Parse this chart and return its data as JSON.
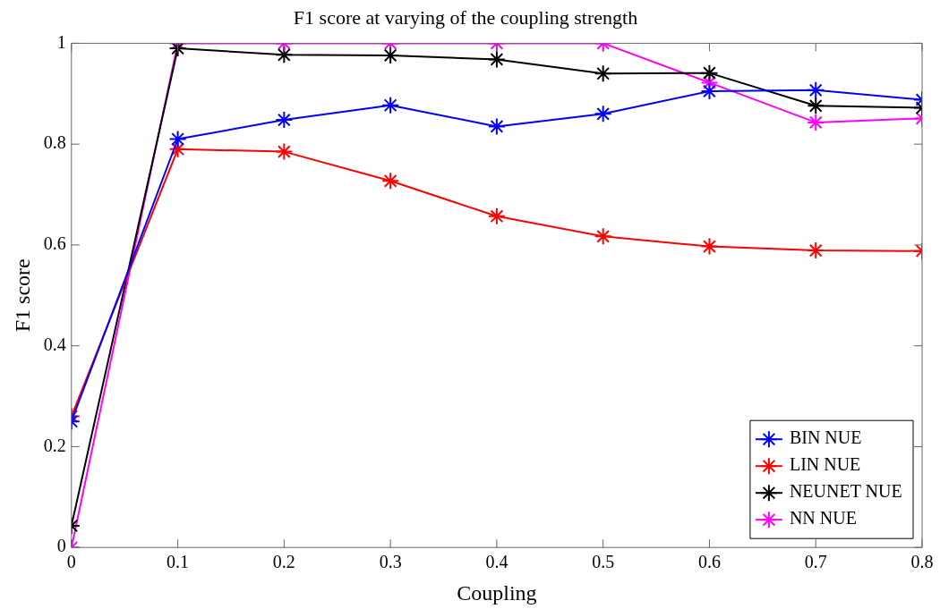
{
  "chart_data": {
    "type": "line",
    "title": "F1 score at varying of the coupling strength",
    "xlabel": "Coupling",
    "ylabel": "F1 score",
    "x": [
      0,
      0.1,
      0.2,
      0.3,
      0.4,
      0.5,
      0.6,
      0.7,
      0.8
    ],
    "xlim": [
      0,
      0.8
    ],
    "xticks": [
      0,
      0.1,
      0.2,
      0.3,
      0.4,
      0.5,
      0.6,
      0.7,
      0.8
    ],
    "ylim": [
      0,
      1
    ],
    "yticks": [
      0,
      0.2,
      0.4,
      0.6,
      0.8,
      1
    ],
    "grid": false,
    "legend": "bottom right",
    "marker": "cross",
    "line_style": "solid",
    "series": [
      {
        "name": "BIN NUE",
        "color": "#0000ff",
        "values": [
          0.25,
          0.81,
          0.848,
          0.877,
          0.835,
          0.86,
          0.905,
          0.907,
          0.888
        ]
      },
      {
        "name": "LIN NUE",
        "color": "#ff0000",
        "values": [
          0.26,
          0.79,
          0.785,
          0.727,
          0.657,
          0.617,
          0.597,
          0.589,
          0.588
        ]
      },
      {
        "name": "NEUNET NUE",
        "color": "#000000",
        "values": [
          0.043,
          0.99,
          0.977,
          0.976,
          0.968,
          0.94,
          0.941,
          0.876,
          0.872
        ]
      },
      {
        "name": "NN NUE",
        "color": "#ff00ff",
        "values": [
          0,
          1,
          1,
          1,
          1,
          1,
          0.922,
          0.843,
          0.851
        ]
      }
    ]
  }
}
